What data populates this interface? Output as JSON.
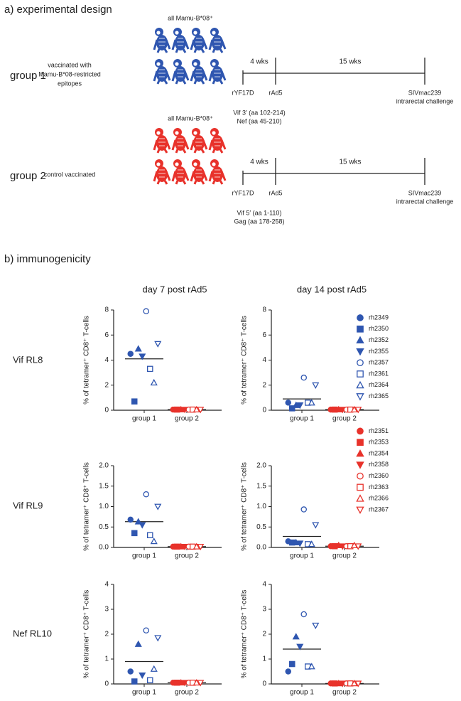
{
  "figure": {
    "design": {
      "title": "a) experimental design",
      "groups": [
        {
          "label": "group 1",
          "description": [
            "vaccinated with",
            "Mamu-B*08-restricted",
            "epitopes"
          ],
          "header": "all Mamu-B*08⁺",
          "color": "#2f56b0",
          "interval1": "4 wks",
          "interval2": "15 wks",
          "prime": "rYF17D",
          "boost": "rAd5",
          "challenge": [
            "SIVmac239",
            "intrarectal challenge"
          ],
          "inserts": [
            "Vif 3′ (aa 102-214)",
            "Nef (aa 45-210)"
          ]
        },
        {
          "label": "group 2",
          "description": [
            "control vaccinated"
          ],
          "header": "all Mamu-B*08⁺",
          "color": "#e8322b",
          "interval1": "4 wks",
          "interval2": "15 wks",
          "prime": "rYF17D",
          "boost": "rAd5",
          "challenge": [
            "SIVmac239",
            "intrarectal challenge"
          ],
          "inserts": [
            "Vif 5′ (aa 1-110)",
            "Gag (aa 178-258)"
          ]
        }
      ]
    },
    "immunogenicity_title": "b) immunogenicity",
    "column_titles": [
      "day 7 post rAd5",
      "day 14 post rAd5"
    ],
    "row_labels": [
      "Vif RL8",
      "Vif RL9",
      "Nef RL10"
    ],
    "animals": [
      {
        "name": "rh2349",
        "color": "#2f56b0",
        "marker": "circle",
        "filled": true
      },
      {
        "name": "rh2350",
        "color": "#2f56b0",
        "marker": "square",
        "filled": true
      },
      {
        "name": "rh2352",
        "color": "#2f56b0",
        "marker": "up",
        "filled": true
      },
      {
        "name": "rh2355",
        "color": "#2f56b0",
        "marker": "down",
        "filled": true
      },
      {
        "name": "rh2357",
        "color": "#2f56b0",
        "marker": "circle",
        "filled": false
      },
      {
        "name": "rh2361",
        "color": "#2f56b0",
        "marker": "square",
        "filled": false
      },
      {
        "name": "rh2364",
        "color": "#2f56b0",
        "marker": "up",
        "filled": false
      },
      {
        "name": "rh2365",
        "color": "#2f56b0",
        "marker": "down",
        "filled": false
      },
      {
        "name": "rh2351",
        "color": "#e8322b",
        "marker": "circle",
        "filled": true
      },
      {
        "name": "rh2353",
        "color": "#e8322b",
        "marker": "square",
        "filled": true
      },
      {
        "name": "rh2354",
        "color": "#e8322b",
        "marker": "up",
        "filled": true
      },
      {
        "name": "rh2358",
        "color": "#e8322b",
        "marker": "down",
        "filled": true
      },
      {
        "name": "rh2360",
        "color": "#e8322b",
        "marker": "circle",
        "filled": false
      },
      {
        "name": "rh2363",
        "color": "#e8322b",
        "marker": "square",
        "filled": false
      },
      {
        "name": "rh2366",
        "color": "#e8322b",
        "marker": "up",
        "filled": false
      },
      {
        "name": "rh2367",
        "color": "#e8322b",
        "marker": "down",
        "filled": false
      }
    ]
  },
  "chart_data": [
    {
      "type": "scatter",
      "categories": [
        "group 1",
        "group 2"
      ],
      "ylabel": "% of tetramer⁺ CD8⁺ T-cells",
      "ylim": [
        0,
        8
      ],
      "yticks": [
        0,
        2,
        4,
        6,
        8
      ],
      "means": [
        4.1,
        0.05
      ],
      "series": [
        {
          "values": [
            4.5,
            null
          ]
        },
        {
          "values": [
            0.7,
            null
          ]
        },
        {
          "values": [
            4.9,
            null
          ]
        },
        {
          "values": [
            4.3,
            null
          ]
        },
        {
          "values": [
            7.9,
            null
          ]
        },
        {
          "values": [
            3.3,
            null
          ]
        },
        {
          "values": [
            2.2,
            null
          ]
        },
        {
          "values": [
            5.3,
            null
          ]
        },
        {
          "values": [
            null,
            0.05
          ]
        },
        {
          "values": [
            null,
            0.05
          ]
        },
        {
          "values": [
            null,
            0.05
          ]
        },
        {
          "values": [
            null,
            0.05
          ]
        },
        {
          "values": [
            null,
            0.05
          ]
        },
        {
          "values": [
            null,
            0.05
          ]
        },
        {
          "values": [
            null,
            0.05
          ]
        },
        {
          "values": [
            null,
            0.05
          ]
        }
      ]
    },
    {
      "type": "scatter",
      "categories": [
        "group 1",
        "group 2"
      ],
      "ylabel": "% of tetramer⁺ CD8⁺ T-cells",
      "ylim": [
        0,
        8
      ],
      "yticks": [
        0,
        2,
        4,
        6,
        8
      ],
      "means": [
        0.9,
        0.05
      ],
      "series": [
        {
          "values": [
            0.6,
            null
          ]
        },
        {
          "values": [
            0.15,
            null
          ]
        },
        {
          "values": [
            0.4,
            null
          ]
        },
        {
          "values": [
            0.4,
            null
          ]
        },
        {
          "values": [
            2.6,
            null
          ]
        },
        {
          "values": [
            0.6,
            null
          ]
        },
        {
          "values": [
            0.6,
            null
          ]
        },
        {
          "values": [
            2.0,
            null
          ]
        },
        {
          "values": [
            null,
            0.05
          ]
        },
        {
          "values": [
            null,
            0.05
          ]
        },
        {
          "values": [
            null,
            0.05
          ]
        },
        {
          "values": [
            null,
            0.05
          ]
        },
        {
          "values": [
            null,
            0.05
          ]
        },
        {
          "values": [
            null,
            0.05
          ]
        },
        {
          "values": [
            null,
            0.05
          ]
        },
        {
          "values": [
            null,
            0.05
          ]
        }
      ]
    },
    {
      "type": "scatter",
      "categories": [
        "group 1",
        "group 2"
      ],
      "ylabel": "% of tetramer⁺ CD8⁺ T-cells",
      "ylim": [
        0,
        2
      ],
      "yticks": [
        {
          "value": 0,
          "label": "0.0"
        },
        0.5,
        {
          "value": 1,
          "label": "1.0"
        },
        1.5,
        {
          "value": 2,
          "label": "2.0"
        }
      ],
      "means": [
        0.63,
        0.02
      ],
      "series": [
        {
          "values": [
            0.68,
            null
          ]
        },
        {
          "values": [
            0.35,
            null
          ]
        },
        {
          "values": [
            0.63,
            null
          ]
        },
        {
          "values": [
            0.55,
            null
          ]
        },
        {
          "values": [
            1.3,
            null
          ]
        },
        {
          "values": [
            0.3,
            null
          ]
        },
        {
          "values": [
            0.15,
            null
          ]
        },
        {
          "values": [
            1.0,
            null
          ]
        },
        {
          "values": [
            null,
            0.02
          ]
        },
        {
          "values": [
            null,
            0.02
          ]
        },
        {
          "values": [
            null,
            0.02
          ]
        },
        {
          "values": [
            null,
            0.02
          ]
        },
        {
          "values": [
            null,
            0.02
          ]
        },
        {
          "values": [
            null,
            0.02
          ]
        },
        {
          "values": [
            null,
            0.02
          ]
        },
        {
          "values": [
            null,
            0.02
          ]
        }
      ]
    },
    {
      "type": "scatter",
      "categories": [
        "group 1",
        "group 2"
      ],
      "ylabel": "% of tetramer⁺ CD8⁺ T-cells",
      "ylim": [
        0,
        2
      ],
      "yticks": [
        {
          "value": 0,
          "label": "0.0"
        },
        0.5,
        {
          "value": 1,
          "label": "1.0"
        },
        1.5,
        {
          "value": 2,
          "label": "2.0"
        }
      ],
      "means": [
        0.27,
        0.03
      ],
      "series": [
        {
          "values": [
            0.15,
            null
          ]
        },
        {
          "values": [
            0.12,
            null
          ]
        },
        {
          "values": [
            0.12,
            null
          ]
        },
        {
          "values": [
            0.1,
            null
          ]
        },
        {
          "values": [
            0.93,
            null
          ]
        },
        {
          "values": [
            0.08,
            null
          ]
        },
        {
          "values": [
            0.08,
            null
          ]
        },
        {
          "values": [
            0.55,
            null
          ]
        },
        {
          "values": [
            null,
            0.03
          ]
        },
        {
          "values": [
            null,
            0.03
          ]
        },
        {
          "values": [
            null,
            0.05
          ]
        },
        {
          "values": [
            null,
            0.03
          ]
        },
        {
          "values": [
            null,
            0.03
          ]
        },
        {
          "values": [
            null,
            0.03
          ]
        },
        {
          "values": [
            null,
            0.05
          ]
        },
        {
          "values": [
            null,
            0.03
          ]
        }
      ]
    },
    {
      "type": "scatter",
      "categories": [
        "group 1",
        "group 2"
      ],
      "ylabel": "% of tetramer⁺ CD8⁺ T-cells",
      "ylim": [
        0,
        4
      ],
      "yticks": [
        0,
        1,
        2,
        3,
        4
      ],
      "means": [
        0.9,
        0.05
      ],
      "series": [
        {
          "values": [
            0.5,
            null
          ]
        },
        {
          "values": [
            0.1,
            null
          ]
        },
        {
          "values": [
            1.6,
            null
          ]
        },
        {
          "values": [
            0.35,
            null
          ]
        },
        {
          "values": [
            2.15,
            null
          ]
        },
        {
          "values": [
            0.15,
            null
          ]
        },
        {
          "values": [
            0.6,
            null
          ]
        },
        {
          "values": [
            1.85,
            null
          ]
        },
        {
          "values": [
            null,
            0.05
          ]
        },
        {
          "values": [
            null,
            0.05
          ]
        },
        {
          "values": [
            null,
            0.05
          ]
        },
        {
          "values": [
            null,
            0.05
          ]
        },
        {
          "values": [
            null,
            0.05
          ]
        },
        {
          "values": [
            null,
            0.05
          ]
        },
        {
          "values": [
            null,
            0.05
          ]
        },
        {
          "values": [
            null,
            0.05
          ]
        }
      ]
    },
    {
      "type": "scatter",
      "categories": [
        "group 1",
        "group 2"
      ],
      "ylabel": "% of tetramer⁺ CD8⁺ T-cells",
      "ylim": [
        0,
        4
      ],
      "yticks": [
        0,
        1,
        2,
        3,
        4
      ],
      "means": [
        1.4,
        0.02
      ],
      "series": [
        {
          "values": [
            0.5,
            null
          ]
        },
        {
          "values": [
            0.8,
            null
          ]
        },
        {
          "values": [
            1.9,
            null
          ]
        },
        {
          "values": [
            1.5,
            null
          ]
        },
        {
          "values": [
            2.8,
            null
          ]
        },
        {
          "values": [
            0.7,
            null
          ]
        },
        {
          "values": [
            0.7,
            null
          ]
        },
        {
          "values": [
            2.35,
            null
          ]
        },
        {
          "values": [
            null,
            0.02
          ]
        },
        {
          "values": [
            null,
            0.02
          ]
        },
        {
          "values": [
            null,
            0.02
          ]
        },
        {
          "values": [
            null,
            0.02
          ]
        },
        {
          "values": [
            null,
            0.02
          ]
        },
        {
          "values": [
            null,
            0.02
          ]
        },
        {
          "values": [
            null,
            0.02
          ]
        },
        {
          "values": [
            null,
            0.02
          ]
        }
      ]
    }
  ]
}
